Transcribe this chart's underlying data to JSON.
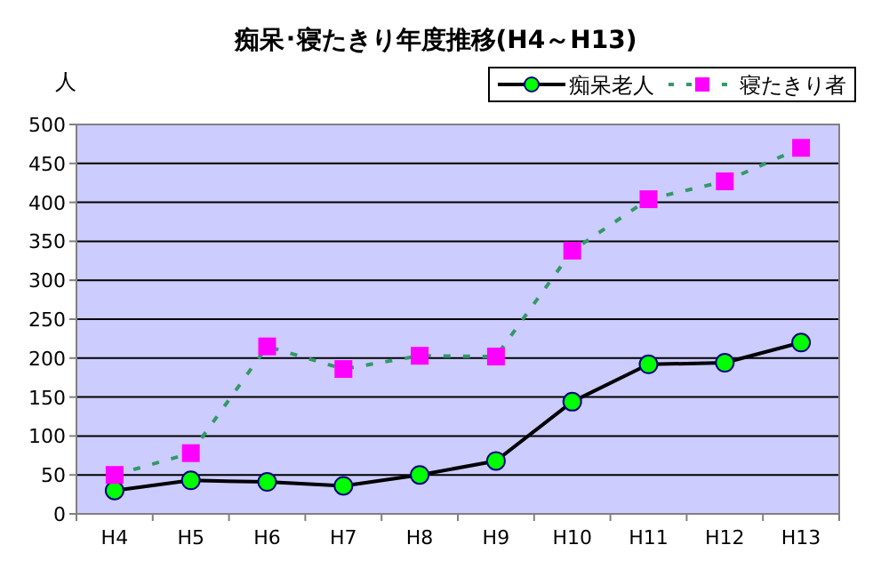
{
  "chart_data": {
    "type": "line",
    "title": "痴呆･寝たきり年度推移(H4～H13)",
    "ylabel": "人",
    "categories": [
      "H4",
      "H5",
      "H6",
      "H7",
      "H8",
      "H9",
      "H10",
      "H11",
      "H12",
      "H13"
    ],
    "series": [
      {
        "name": "痴呆老人",
        "color": "#000000",
        "marker": "circle",
        "line_style": "solid",
        "values": [
          30,
          43,
          41,
          36,
          50,
          68,
          144,
          192,
          194,
          220
        ]
      },
      {
        "name": "寝たきり者",
        "color": "#339966",
        "marker": "square",
        "line_style": "dashed",
        "values": [
          50,
          78,
          215,
          186,
          203,
          202,
          338,
          404,
          427,
          470
        ]
      }
    ],
    "ylim": [
      0,
      500
    ],
    "yticks": [
      0,
      50,
      100,
      150,
      200,
      250,
      300,
      350,
      400,
      450,
      500
    ],
    "grid": "y",
    "legend": "top right"
  }
}
